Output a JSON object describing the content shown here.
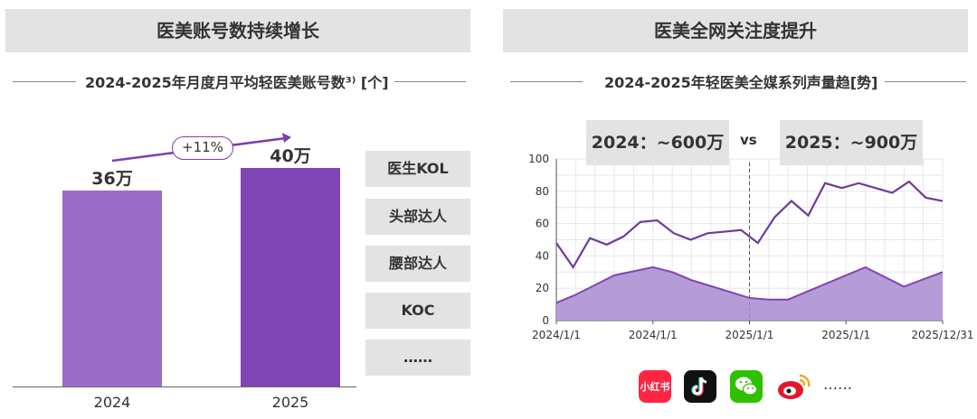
{
  "left_panel": {
    "header": "医美账号数持续增长",
    "subtitle": "2024-2025年月度月平均轻医美账号数³⁾ [个]",
    "growth_label": "+11%",
    "categories": [
      "医生KOL",
      "头部达人",
      "腰部达人",
      "KOC",
      "……"
    ]
  },
  "right_panel": {
    "header": "医美全网关注度提升",
    "subtitle": "2024-2025年轻医美全媒系列声量趋[势]",
    "compare_2024": "2024：~600万",
    "compare_vs": "vs",
    "compare_2025": "2025：~900万",
    "platforms": [
      "xiaohongshu-icon",
      "douyin-icon",
      "wechat-icon",
      "weibo-icon"
    ],
    "platform_more": "……",
    "xiaohongshu_text": "小红书"
  },
  "chart_data": [
    {
      "type": "bar",
      "categories": [
        "2024",
        "2025"
      ],
      "values": [
        36,
        40
      ],
      "value_labels": [
        "36万",
        "40万"
      ],
      "colors": [
        "#9b6cc7",
        "#7f45b4"
      ],
      "title": "2024-2025年月度月平均轻医美账号数³⁾ [个]",
      "ylim": [
        0,
        48
      ]
    },
    {
      "type": "area",
      "x_tick_labels": [
        "2024/1/1",
        "2024/1/1",
        "2025/1/1",
        "2025/1/1",
        "2025/12/31"
      ],
      "ylim": [
        0,
        100
      ],
      "yticks": [
        0,
        20,
        40,
        60,
        80,
        100
      ],
      "grid": true,
      "series": [
        {
          "values": [
            48,
            33,
            51,
            47,
            52,
            61,
            62,
            54,
            50,
            54,
            55,
            56,
            48,
            64,
            74,
            65,
            85,
            82,
            85,
            82,
            79,
            86,
            76,
            74
          ],
          "color": "#6f3a9e"
        },
        {
          "values": [
            11,
            16,
            22,
            28,
            33,
            30,
            25,
            14,
            13,
            13,
            23,
            33,
            21,
            30
          ],
          "x_index": [
            0,
            2,
            4,
            6,
            10,
            12,
            14,
            20,
            22,
            24,
            28,
            32,
            36,
            40
          ],
          "color": "#a98bd0"
        }
      ]
    }
  ],
  "colors": {
    "accent": "#7f45b4",
    "bar_light": "#9b6cc7",
    "header_bg": "#e3e3e3"
  }
}
